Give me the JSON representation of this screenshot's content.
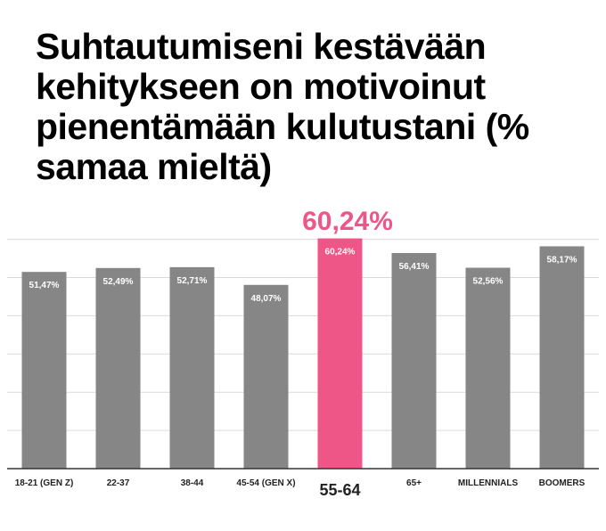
{
  "title": "Suhtautumiseni kestävään kehitykseen on motivoinut pienentämään kulutustani (% samaa mieltä)",
  "highlight": {
    "label": "60,24%",
    "index": 4,
    "color": "#EE5687"
  },
  "colors": {
    "bar": "#878687",
    "highlight": "#EE5687",
    "grid": "#d9d9d9",
    "axis": "#333333"
  },
  "chart_data": {
    "type": "bar",
    "title": "Suhtautumiseni kestävään kehitykseen on motivoinut pienentämään kulutustani (% samaa mieltä)",
    "categories": [
      "18-21 (GEN Z)",
      "22-37",
      "38-44",
      "45-54 (GEN X)",
      "55-64",
      "65+",
      "MILLENNIALS",
      "BOOMERS"
    ],
    "values": [
      51.47,
      52.49,
      52.71,
      48.07,
      60.24,
      56.41,
      52.56,
      58.17
    ],
    "value_labels": [
      "51,47%",
      "52,49%",
      "52,71%",
      "48,07%",
      "60,24%",
      "56,41%",
      "52,56%",
      "58,17%"
    ],
    "ylim": [
      0,
      60
    ],
    "grid": true,
    "xlabel": "",
    "ylabel": ""
  }
}
